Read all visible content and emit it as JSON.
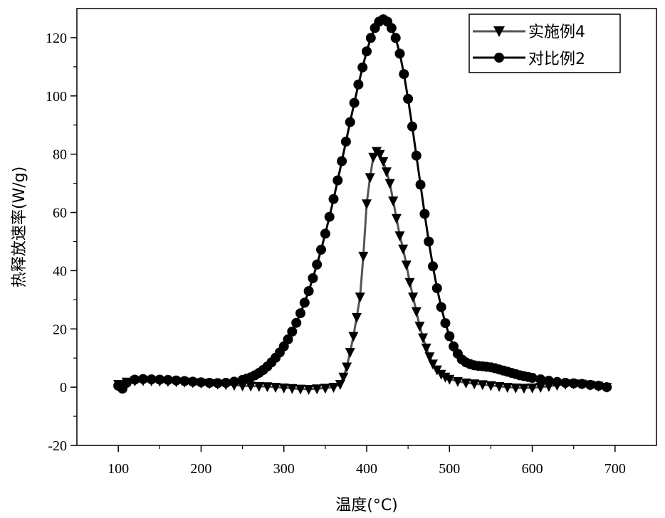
{
  "chart_data": {
    "type": "line",
    "xlabel": "温度(°C)",
    "ylabel": "热释放速率(W/g)",
    "xlim": [
      50,
      750
    ],
    "ylim": [
      -20,
      130
    ],
    "x_ticks": [
      100,
      200,
      300,
      400,
      500,
      600,
      700
    ],
    "y_ticks": [
      -20,
      0,
      20,
      40,
      60,
      80,
      100,
      120
    ],
    "grid": false,
    "legend_position": "top-right",
    "series": [
      {
        "name": "实施例4",
        "color": "#555555",
        "marker": "triangle-down",
        "x": [
          100,
          110,
          120,
          130,
          140,
          150,
          160,
          170,
          180,
          190,
          200,
          210,
          220,
          230,
          240,
          250,
          260,
          270,
          280,
          290,
          300,
          310,
          320,
          330,
          340,
          350,
          360,
          368,
          372,
          376,
          380,
          384,
          388,
          392,
          396,
          400,
          404,
          408,
          412,
          416,
          420,
          424,
          428,
          432,
          436,
          440,
          444,
          448,
          452,
          456,
          460,
          464,
          468,
          472,
          476,
          480,
          485,
          490,
          495,
          500,
          510,
          520,
          530,
          540,
          550,
          560,
          570,
          580,
          590,
          600,
          610,
          620,
          630,
          640,
          650,
          660,
          670,
          680,
          690
        ],
        "y": [
          1.0,
          1.8,
          2.2,
          2.3,
          2.2,
          2.1,
          2.0,
          1.9,
          1.8,
          1.6,
          1.4,
          1.3,
          1.1,
          0.9,
          0.7,
          0.5,
          0.4,
          0.3,
          0.2,
          0.0,
          -0.2,
          -0.4,
          -0.6,
          -0.7,
          -0.5,
          -0.3,
          0.0,
          1.0,
          3.5,
          7.0,
          12.0,
          17.5,
          24.0,
          31.0,
          45.0,
          63.0,
          72.0,
          79.0,
          81.0,
          80.0,
          77.5,
          74.0,
          70.0,
          64.0,
          58.0,
          52.0,
          47.5,
          42.0,
          36.0,
          31.0,
          26.0,
          21.0,
          17.0,
          13.5,
          10.5,
          8.0,
          6.0,
          4.5,
          3.5,
          2.8,
          2.0,
          1.5,
          1.2,
          0.9,
          0.6,
          0.3,
          0.0,
          -0.2,
          -0.3,
          -0.2,
          0.0,
          0.3,
          0.7,
          1.0,
          1.2,
          1.1,
          0.8,
          0.4,
          0.0
        ]
      },
      {
        "name": "对比例2",
        "color": "#000000",
        "marker": "circle",
        "x": [
          100,
          105,
          110,
          120,
          130,
          140,
          150,
          160,
          170,
          180,
          190,
          200,
          210,
          220,
          230,
          240,
          250,
          255,
          260,
          265,
          270,
          275,
          280,
          285,
          290,
          295,
          300,
          305,
          310,
          315,
          320,
          325,
          330,
          335,
          340,
          345,
          350,
          355,
          360,
          365,
          370,
          375,
          380,
          385,
          390,
          395,
          400,
          405,
          410,
          415,
          420,
          425,
          430,
          435,
          440,
          445,
          450,
          455,
          460,
          465,
          470,
          475,
          480,
          485,
          490,
          495,
          500,
          505,
          510,
          515,
          520,
          525,
          530,
          535,
          540,
          545,
          550,
          555,
          560,
          565,
          570,
          575,
          580,
          585,
          590,
          595,
          600,
          610,
          620,
          630,
          640,
          650,
          660,
          670,
          680,
          690
        ],
        "y": [
          0.5,
          -0.5,
          1.5,
          2.6,
          2.8,
          2.7,
          2.6,
          2.5,
          2.3,
          2.1,
          1.9,
          1.7,
          1.5,
          1.4,
          1.5,
          1.9,
          2.5,
          2.9,
          3.4,
          4.1,
          4.9,
          5.9,
          7.1,
          8.5,
          10.1,
          11.9,
          14.0,
          16.4,
          19.1,
          22.1,
          25.4,
          29.0,
          33.0,
          37.4,
          42.1,
          47.2,
          52.7,
          58.5,
          64.6,
          71.0,
          77.6,
          84.3,
          91.0,
          97.6,
          103.9,
          109.8,
          115.3,
          119.9,
          123.3,
          125.5,
          126.3,
          125.5,
          123.3,
          119.9,
          114.5,
          107.5,
          99.0,
          89.5,
          79.5,
          69.5,
          59.5,
          50.0,
          41.5,
          34.0,
          27.5,
          22.0,
          17.5,
          14.0,
          11.5,
          9.5,
          8.5,
          7.9,
          7.5,
          7.3,
          7.2,
          7.0,
          6.8,
          6.5,
          6.1,
          5.7,
          5.3,
          4.9,
          4.5,
          4.1,
          3.8,
          3.5,
          3.2,
          2.7,
          2.2,
          1.8,
          1.5,
          1.3,
          1.1,
          0.8,
          0.5,
          0.0
        ]
      }
    ]
  }
}
